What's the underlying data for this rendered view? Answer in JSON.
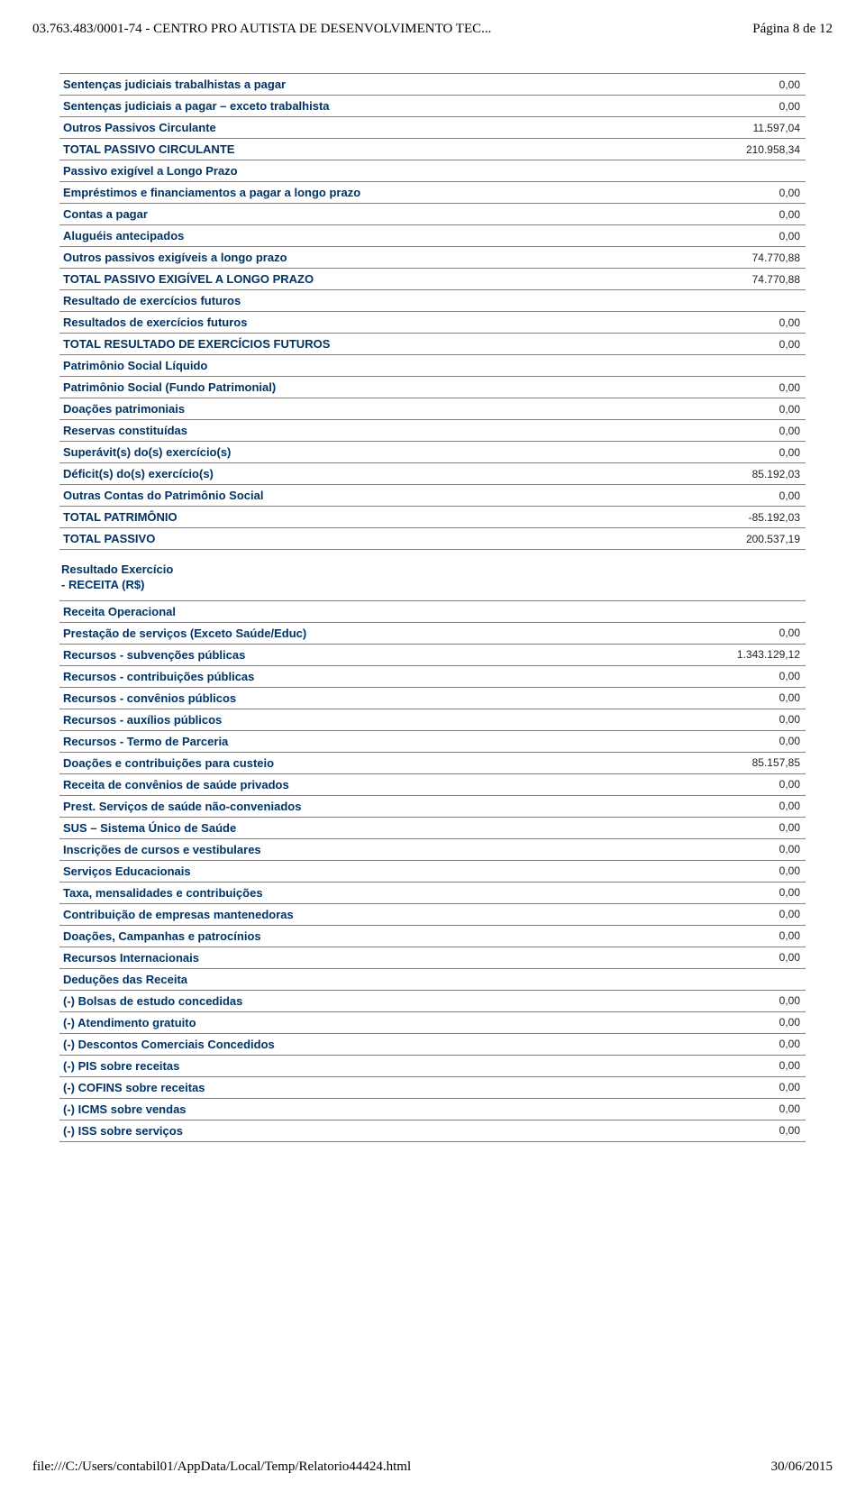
{
  "header": {
    "left": "03.763.483/0001-74 - CENTRO PRO AUTISTA DE DESENVOLVIMENTO TEC...",
    "right": "Página 8 de 12"
  },
  "footer": {
    "left": "file:///C:/Users/contabil01/AppData/Local/Temp/Relatorio44424.html",
    "right": "30/06/2015"
  },
  "colors": {
    "label": "#003366",
    "value": "#222222",
    "border": "#808080",
    "bg": "#ffffff"
  },
  "table1": {
    "rows": [
      {
        "label": "Sentenças judiciais trabalhistas a pagar",
        "value": "0,00"
      },
      {
        "label": "Sentenças judiciais a pagar – exceto trabalhista",
        "value": "0,00"
      },
      {
        "label": "Outros Passivos Circulante",
        "value": "11.597,04"
      },
      {
        "label": "TOTAL PASSIVO CIRCULANTE",
        "value": "210.958,34"
      },
      {
        "label": "Passivo exigível a Longo Prazo",
        "value": ""
      },
      {
        "label": "Empréstimos e financiamentos a pagar a longo prazo",
        "value": "0,00"
      },
      {
        "label": "Contas a pagar",
        "value": "0,00"
      },
      {
        "label": "Aluguéis antecipados",
        "value": "0,00"
      },
      {
        "label": "Outros passivos exigíveis a longo prazo",
        "value": "74.770,88"
      },
      {
        "label": "TOTAL PASSIVO EXIGÍVEL A LONGO PRAZO",
        "value": "74.770,88"
      },
      {
        "label": "Resultado de exercícios futuros",
        "value": ""
      },
      {
        "label": "Resultados de exercícios futuros",
        "value": "0,00"
      },
      {
        "label": "TOTAL RESULTADO DE EXERCÍCIOS FUTUROS",
        "value": "0,00"
      },
      {
        "label": "Patrimônio Social Líquido",
        "value": ""
      },
      {
        "label": "Patrimônio Social (Fundo Patrimonial)",
        "value": "0,00"
      },
      {
        "label": "Doações patrimoniais",
        "value": "0,00"
      },
      {
        "label": "Reservas constituídas",
        "value": "0,00"
      },
      {
        "label": "Superávit(s) do(s) exercício(s)",
        "value": "0,00"
      },
      {
        "label": "Déficit(s) do(s) exercício(s)",
        "value": "85.192,03"
      },
      {
        "label": "Outras Contas do Patrimônio Social",
        "value": "0,00"
      },
      {
        "label": "TOTAL PATRIMÔNIO",
        "value": "-85.192,03"
      },
      {
        "label": "TOTAL PASSIVO",
        "value": "200.537,19"
      }
    ]
  },
  "section2_title": "Resultado Exercício\n- RECEITA (R$)",
  "table2": {
    "rows": [
      {
        "label": "Receita Operacional",
        "value": ""
      },
      {
        "label": "Prestação de serviços (Exceto Saúde/Educ)",
        "value": "0,00"
      },
      {
        "label": "Recursos - subvenções públicas",
        "value": "1.343.129,12"
      },
      {
        "label": "Recursos - contribuições públicas",
        "value": "0,00"
      },
      {
        "label": "Recursos - convênios públicos",
        "value": "0,00"
      },
      {
        "label": "Recursos - auxílios públicos",
        "value": "0,00"
      },
      {
        "label": "Recursos - Termo de Parceria",
        "value": "0,00"
      },
      {
        "label": "Doações e contribuições para custeio",
        "value": "85.157,85"
      },
      {
        "label": "Receita de convênios de saúde privados",
        "value": "0,00"
      },
      {
        "label": "Prest. Serviços de saúde não-conveniados",
        "value": "0,00"
      },
      {
        "label": "SUS – Sistema Único de Saúde",
        "value": "0,00"
      },
      {
        "label": "Inscrições de cursos e vestibulares",
        "value": "0,00"
      },
      {
        "label": "Serviços Educacionais",
        "value": "0,00"
      },
      {
        "label": "Taxa,  mensalidades e contribuições",
        "value": "0,00"
      },
      {
        "label": "Contribuição de empresas mantenedoras",
        "value": "0,00"
      },
      {
        "label": "Doações, Campanhas e patrocínios",
        "value": "0,00"
      },
      {
        "label": "Recursos Internacionais",
        "value": "0,00"
      },
      {
        "label": "Deduções das Receita",
        "value": ""
      },
      {
        "label": "(-) Bolsas de estudo concedidas",
        "value": "0,00"
      },
      {
        "label": "(-) Atendimento gratuito",
        "value": "0,00"
      },
      {
        "label": "(-) Descontos Comerciais Concedidos",
        "value": "0,00"
      },
      {
        "label": "(-) PIS sobre receitas",
        "value": "0,00"
      },
      {
        "label": "(-) COFINS sobre receitas",
        "value": "0,00"
      },
      {
        "label": "(-) ICMS sobre vendas",
        "value": "0,00"
      },
      {
        "label": "(-) ISS sobre serviços",
        "value": "0,00"
      }
    ]
  }
}
